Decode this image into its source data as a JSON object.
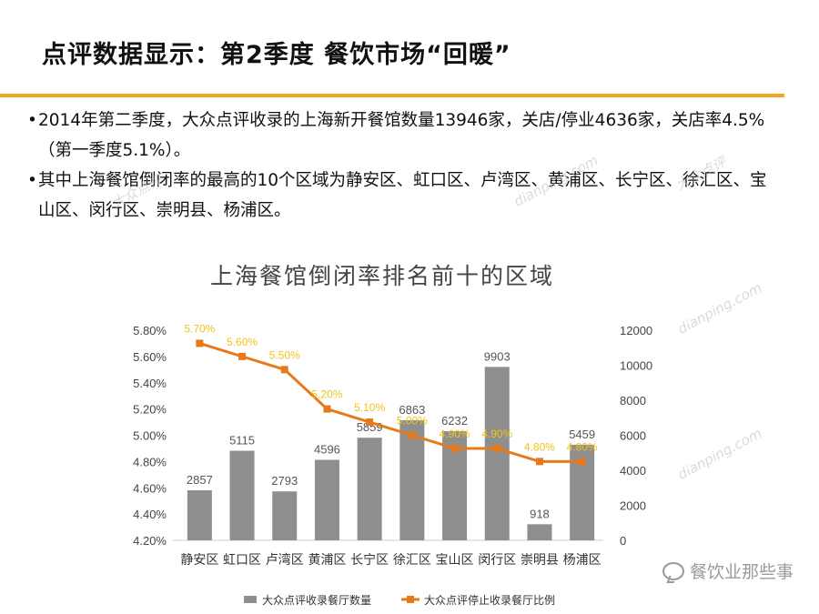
{
  "title": "点评数据显示：第2季度 餐饮市场“回暖”",
  "bullets": [
    "2014年第二季度，大众点评收录的上海新开餐馆数量13946家，关店/停业4636家，关店率4.5%（第一季度5.1%）。",
    "其中上海餐馆倒闭率的最高的10个区域为静安区、虹口区、卢湾区、黄浦区、长宁区、徐汇区、宝山区、闵行区、崇明县、杨浦区。"
  ],
  "brand_label": "餐饮业那些事",
  "watermarks": [
    "大众点评",
    "dianping.com"
  ],
  "colors": {
    "accent": "#f2a51e",
    "bar": "#8e8e8e",
    "line": "#e8791a",
    "line_label": "#f0c419",
    "text": "#444444"
  },
  "chart_data": {
    "type": "bar",
    "title": "上海餐馆倒闭率排名前十的区域",
    "categories": [
      "静安区",
      "虹口区",
      "卢湾区",
      "黄浦区",
      "长宁区",
      "徐汇区",
      "宝山区",
      "闵行区",
      "崇明县",
      "杨浦区"
    ],
    "series": [
      {
        "name": "大众点评收录餐厅数量",
        "type": "bar",
        "axis": "right",
        "values": [
          2857,
          5115,
          2793,
          4596,
          5859,
          6863,
          6232,
          9903,
          918,
          5459
        ]
      },
      {
        "name": "大众点评停止收录餐厅比例",
        "type": "line",
        "axis": "left",
        "values": [
          5.7,
          5.6,
          5.5,
          5.2,
          5.1,
          5.0,
          4.9,
          4.9,
          4.8,
          4.8
        ],
        "labels": [
          "5.70%",
          "5.60%",
          "5.50%",
          "5.20%",
          "5.10%",
          "5.00%",
          "4.90%",
          "4.90%",
          "4.80%",
          "4.80%"
        ]
      }
    ],
    "bar_labels": [
      "2857",
      "5115",
      "2793",
      "4596",
      "5859",
      "6863",
      "6232",
      "9903",
      "918",
      "5459"
    ],
    "y_left": {
      "min": 4.2,
      "max": 5.8,
      "ticks": [
        "4.20%",
        "4.40%",
        "4.60%",
        "4.80%",
        "5.00%",
        "5.20%",
        "5.40%",
        "5.60%",
        "5.80%"
      ]
    },
    "y_right": {
      "min": 0,
      "max": 12000,
      "ticks": [
        "0",
        "2000",
        "4000",
        "6000",
        "8000",
        "10000",
        "12000"
      ]
    },
    "grid": false,
    "legend_position": "bottom"
  }
}
